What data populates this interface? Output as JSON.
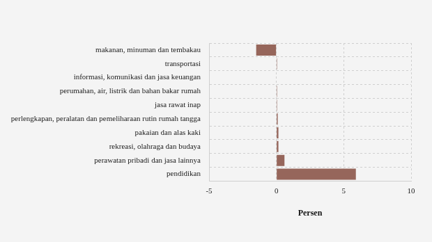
{
  "chart_data": {
    "type": "bar",
    "orientation": "horizontal",
    "categories": [
      "makanan, minuman dan tembakau",
      "transportasi",
      "informasi, komunikasi dan jasa keuangan",
      "perumahan, air, listrik dan bahan bakar rumah",
      "jasa rawat inap",
      "perlengkapan, peralatan dan pemeliharaan rutin rumah tangga",
      "pakaian dan alas kaki",
      "rekreasi, olahraga dan budaya",
      "perawatan pribadi dan jasa lainnya",
      "pendidikan"
    ],
    "values": [
      -1.5,
      0.05,
      0.0,
      0.05,
      0.05,
      0.1,
      0.15,
      0.15,
      0.6,
      5.9
    ],
    "color": "#96665b",
    "x_label": "Persen",
    "xlim": [
      -5,
      10
    ],
    "xticks": [
      -5,
      0,
      5,
      10
    ],
    "grid": true
  }
}
